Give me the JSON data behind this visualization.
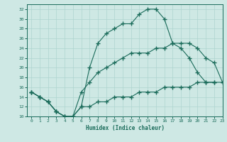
{
  "xlabel": "Humidex (Indice chaleur)",
  "bg_color": "#cee8e4",
  "line_color": "#1a6b5a",
  "grid_color": "#aed4cf",
  "xlim": [
    -0.5,
    23
  ],
  "ylim": [
    10,
    33
  ],
  "xticks": [
    0,
    1,
    2,
    3,
    4,
    5,
    6,
    7,
    8,
    9,
    10,
    11,
    12,
    13,
    14,
    15,
    16,
    17,
    18,
    19,
    20,
    21,
    22,
    23
  ],
  "yticks": [
    10,
    12,
    14,
    16,
    18,
    20,
    22,
    24,
    26,
    28,
    30,
    32
  ],
  "line1_x": [
    0,
    1,
    2,
    3,
    4,
    5,
    6,
    7,
    8,
    9,
    10,
    11,
    12,
    13,
    14,
    15,
    16,
    17,
    18,
    19,
    20,
    21,
    22
  ],
  "line1_y": [
    15,
    14,
    13,
    11,
    10,
    10,
    12,
    20,
    25,
    27,
    28,
    29,
    29,
    31,
    32,
    32,
    30,
    25,
    24,
    22,
    19,
    17,
    17
  ],
  "line2_x": [
    0,
    1,
    2,
    3,
    4,
    5,
    6,
    7,
    8,
    9,
    10,
    11,
    12,
    13,
    14,
    15,
    16,
    17,
    18,
    19,
    20,
    21,
    22,
    23
  ],
  "line2_y": [
    15,
    14,
    13,
    11,
    10,
    10,
    15,
    17,
    19,
    20,
    21,
    22,
    23,
    23,
    23,
    24,
    24,
    25,
    25,
    25,
    24,
    22,
    21,
    17
  ],
  "line3_x": [
    0,
    1,
    2,
    3,
    4,
    5,
    6,
    7,
    8,
    9,
    10,
    11,
    12,
    13,
    14,
    15,
    16,
    17,
    18,
    19,
    20,
    21,
    22,
    23
  ],
  "line3_y": [
    15,
    14,
    13,
    11,
    10,
    10,
    12,
    12,
    13,
    13,
    14,
    14,
    14,
    15,
    15,
    15,
    16,
    16,
    16,
    16,
    17,
    17,
    17,
    17
  ]
}
